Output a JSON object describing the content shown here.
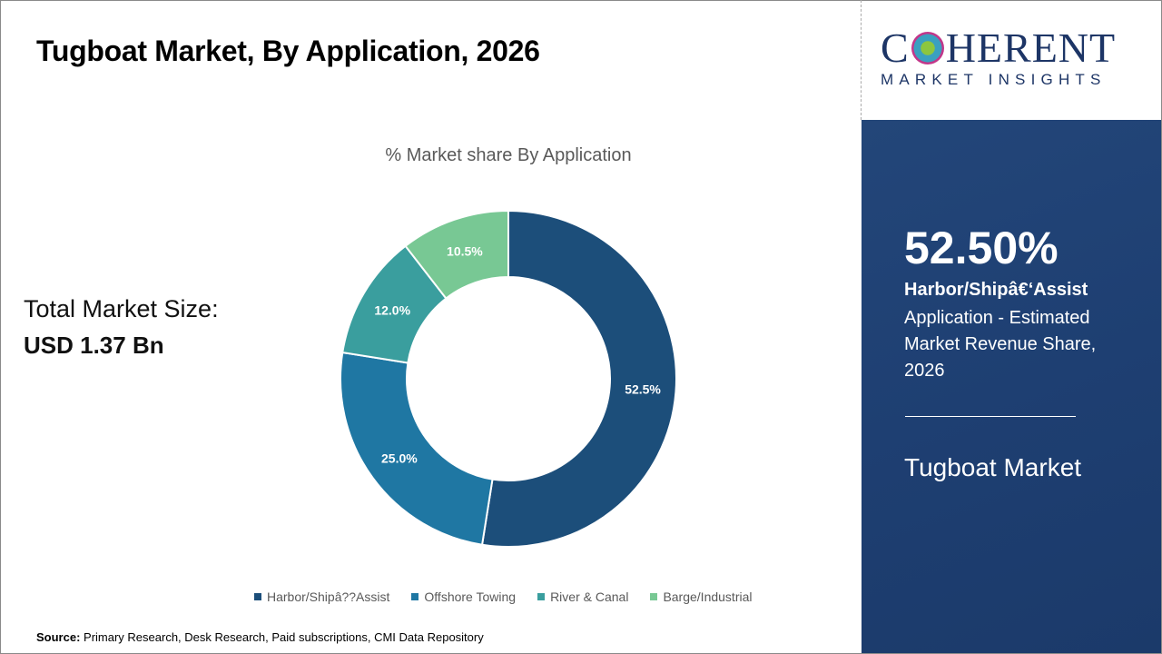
{
  "header": {
    "title": "Tugboat Market, By Application, 2026"
  },
  "summary": {
    "total_label": "Total Market Size:",
    "total_value": "USD 1.37 Bn"
  },
  "logo": {
    "main_left": "C",
    "main_right": "HERENT",
    "sub": "MARKET INSIGHTS"
  },
  "panel": {
    "highlight_value": "52.50%",
    "segment_name": "Harbor/Shipâ€‘Assist",
    "description": "Application - Estimated Market Revenue Share, 2026",
    "market_name": "Tugboat Market"
  },
  "source": {
    "label": "Source:",
    "text": " Primary Research, Desk Research, Paid subscriptions, CMI Data Repository"
  },
  "chart_data": {
    "type": "pie",
    "donut": true,
    "title": "% Market share By Application",
    "legend_position": "bottom",
    "categories": [
      "Harbor/Shipâ??Assist",
      "Offshore Towing",
      "River & Canal",
      "Barge/Industrial"
    ],
    "values": [
      52.5,
      25.0,
      12.0,
      10.5
    ],
    "data_labels": [
      "52.5%",
      "25.0%",
      "12.0%",
      "10.5%"
    ],
    "colors": [
      "#1c4e7a",
      "#1f77a3",
      "#3a9e9e",
      "#78c894"
    ]
  }
}
